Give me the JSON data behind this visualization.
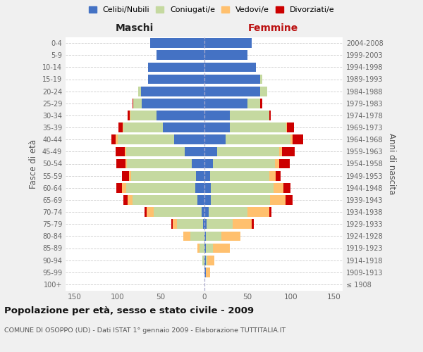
{
  "age_groups": [
    "100+",
    "95-99",
    "90-94",
    "85-89",
    "80-84",
    "75-79",
    "70-74",
    "65-69",
    "60-64",
    "55-59",
    "50-54",
    "45-49",
    "40-44",
    "35-39",
    "30-34",
    "25-29",
    "20-24",
    "15-19",
    "10-14",
    "5-9",
    "0-4"
  ],
  "birth_years": [
    "≤ 1908",
    "1909-1913",
    "1914-1918",
    "1919-1923",
    "1924-1928",
    "1929-1933",
    "1934-1938",
    "1939-1943",
    "1944-1948",
    "1949-1953",
    "1954-1958",
    "1959-1963",
    "1964-1968",
    "1969-1973",
    "1974-1978",
    "1979-1983",
    "1984-1988",
    "1989-1993",
    "1994-1998",
    "1999-2003",
    "2004-2008"
  ],
  "male": {
    "celibe": [
      0,
      0,
      0,
      0,
      0,
      1,
      3,
      8,
      10,
      9,
      14,
      22,
      35,
      48,
      55,
      72,
      73,
      65,
      65,
      55,
      62
    ],
    "coniugato": [
      0,
      0,
      2,
      5,
      16,
      30,
      55,
      75,
      80,
      75,
      75,
      68,
      65,
      45,
      30,
      10,
      3,
      0,
      0,
      0,
      0
    ],
    "vedovo": [
      0,
      0,
      0,
      3,
      8,
      5,
      8,
      5,
      5,
      3,
      2,
      2,
      2,
      1,
      1,
      0,
      0,
      0,
      0,
      0,
      0
    ],
    "divorziato": [
      0,
      0,
      0,
      0,
      0,
      2,
      3,
      5,
      6,
      8,
      10,
      10,
      5,
      5,
      2,
      1,
      0,
      0,
      0,
      0,
      0
    ]
  },
  "female": {
    "nubile": [
      0,
      2,
      2,
      2,
      2,
      3,
      5,
      8,
      8,
      7,
      10,
      15,
      25,
      30,
      30,
      50,
      65,
      65,
      60,
      50,
      55
    ],
    "coniugata": [
      0,
      0,
      2,
      8,
      18,
      30,
      45,
      68,
      72,
      68,
      72,
      72,
      75,
      65,
      45,
      15,
      8,
      2,
      0,
      0,
      0
    ],
    "vedova": [
      0,
      5,
      8,
      20,
      22,
      22,
      25,
      18,
      12,
      8,
      5,
      3,
      2,
      1,
      0,
      0,
      0,
      0,
      0,
      0,
      0
    ],
    "divorziata": [
      0,
      0,
      0,
      0,
      0,
      2,
      3,
      8,
      8,
      5,
      12,
      15,
      12,
      8,
      2,
      2,
      0,
      0,
      0,
      0,
      0
    ]
  },
  "colors": {
    "celibe": "#4472C4",
    "coniugato": "#c5d9a0",
    "vedovo": "#ffc06e",
    "divorziato": "#cc0000"
  },
  "xlim": 160,
  "title": "Popolazione per età, sesso e stato civile - 2009",
  "subtitle": "COMUNE DI OSOPPO (UD) - Dati ISTAT 1° gennaio 2009 - Elaborazione TUTTITALIA.IT",
  "ylabel_left": "Fasce di età",
  "ylabel_right": "Anni di nascita",
  "xlabel_left": "Maschi",
  "xlabel_right": "Femmine",
  "bg_color": "#f0f0f0",
  "plot_bg": "#ffffff",
  "legend_labels": [
    "Celibi/Nubili",
    "Coniugati/e",
    "Vedovi/e",
    "Divorziati/e"
  ]
}
